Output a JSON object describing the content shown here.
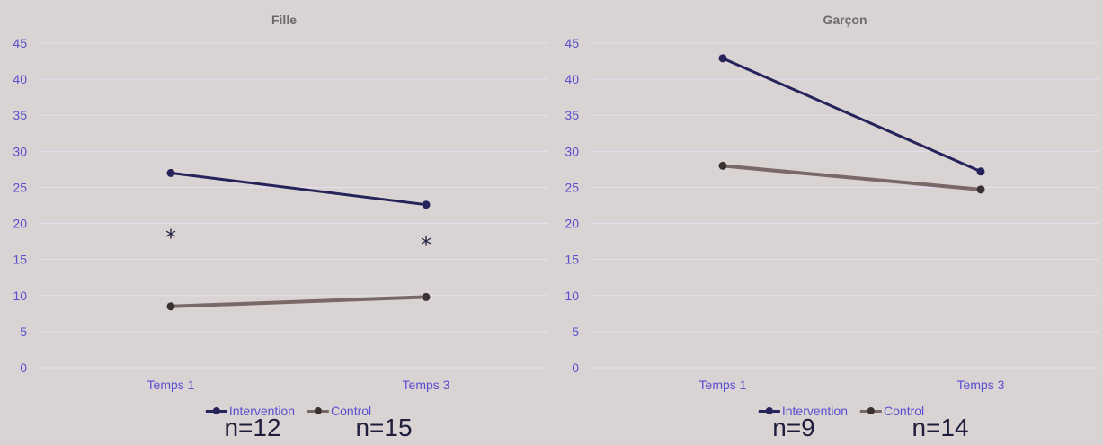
{
  "chart_data": [
    {
      "type": "line",
      "title": "Fille",
      "categories": [
        "Temps 1",
        "Temps 3"
      ],
      "ylim": [
        0,
        45
      ],
      "yticks": [
        0,
        5,
        10,
        15,
        20,
        25,
        30,
        35,
        40,
        45
      ],
      "grid": true,
      "legend_placement": "bottom",
      "series": [
        {
          "name": "Intervention",
          "values": [
            27,
            22.6
          ],
          "color": "#25235a"
        },
        {
          "name": "Control",
          "values": [
            8.5,
            9.8
          ],
          "color": "#7a6868"
        }
      ],
      "annotations": [
        {
          "text": "*",
          "category": "Temps 1",
          "y": 18.5
        },
        {
          "text": "*",
          "category": "Temps 3",
          "y": 17.5
        }
      ],
      "n_labels": [
        "n=12",
        "n=15"
      ]
    },
    {
      "type": "line",
      "title": "Garçon",
      "categories": [
        "Temps 1",
        "Temps 3"
      ],
      "ylim": [
        0,
        45
      ],
      "yticks": [
        0,
        5,
        10,
        15,
        20,
        25,
        30,
        35,
        40,
        45
      ],
      "grid": true,
      "legend_placement": "bottom",
      "series": [
        {
          "name": "Intervention",
          "values": [
            42.9,
            27.2
          ],
          "color": "#25235a"
        },
        {
          "name": "Control",
          "values": [
            28,
            24.7
          ],
          "color": "#7a6868"
        }
      ],
      "annotations": [],
      "n_labels": [
        "n=9",
        "n=14"
      ]
    }
  ]
}
